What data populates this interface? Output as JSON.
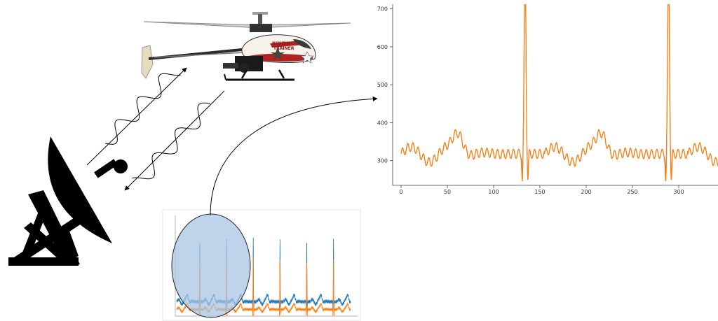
{
  "helicopter": {
    "livery_line1": "BENZIN",
    "livery_line2": "TRAINER"
  },
  "colors": {
    "signal_blue": "#1f77b4",
    "signal_orange": "#ff7f0e",
    "lens_fill": "#aac4e4",
    "ink": "#000000"
  },
  "icons": {
    "dish": "satellite-dish-icon",
    "helicopter": "rc-helicopter-icon"
  },
  "chart_data": [
    {
      "name": "",
      "type": "line",
      "title": "",
      "xlabel": "",
      "ylabel": "",
      "xlim": [
        -5,
        340
      ],
      "ylim": [
        235,
        705
      ],
      "xticks": [
        0,
        50,
        100,
        150,
        200,
        250,
        300
      ],
      "yticks": [
        300,
        400,
        500,
        600,
        700
      ],
      "grid": false,
      "series": [
        {
          "color": "#1f77b4"
        },
        {
          "color": "#ff7f0e"
        }
      ]
    },
    {
      "name": "",
      "type": "line",
      "title": "",
      "xlabel": "",
      "ylabel": "",
      "grid": false,
      "series": [
        {
          "color": "#1f77b4"
        },
        {
          "color": "#ff7f0e"
        }
      ]
    }
  ]
}
